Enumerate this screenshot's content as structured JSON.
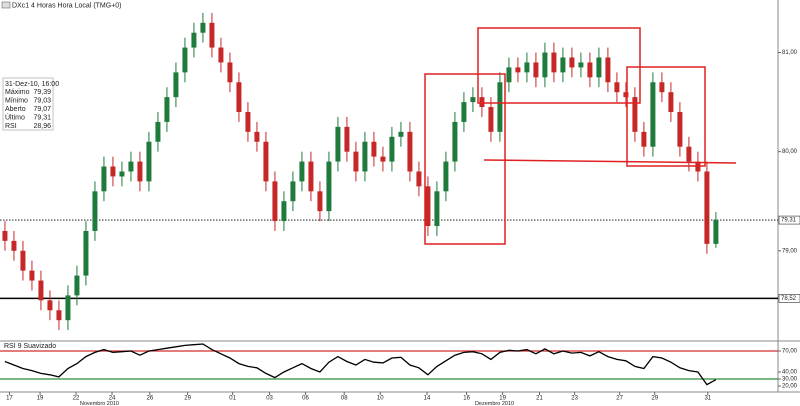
{
  "chart_data": [
    {
      "type": "candlestick",
      "title": "DXc1 4 Horas Hora Local (TMG+0)",
      "info": {
        "date": "31-Dez-10, 16:00",
        "rows": [
          [
            "Máximo",
            "79,39"
          ],
          [
            "Mínimo",
            "79,03"
          ],
          [
            "Aberto",
            "79,07"
          ],
          [
            "Último",
            "79,31"
          ],
          [
            "RSI",
            "28,96"
          ]
        ]
      },
      "up_color": "#1e7b3c",
      "down_color": "#c62828",
      "open": [
        79.2,
        79.1,
        79.0,
        78.8,
        78.7,
        78.5,
        78.4,
        78.3,
        78.55,
        78.75,
        79.2,
        79.6,
        79.85,
        79.75,
        79.8,
        79.9,
        79.7,
        80.1,
        80.3,
        80.55,
        80.8,
        81.05,
        81.2,
        81.3,
        81.05,
        80.9,
        80.7,
        80.4,
        80.2,
        80.1,
        79.7,
        79.3,
        79.5,
        79.7,
        79.9,
        79.6,
        79.4,
        79.9,
        80.25,
        80.0,
        79.8,
        80.1,
        79.95,
        79.9,
        80.15,
        80.2,
        79.8,
        79.65,
        79.25,
        79.6,
        79.9,
        80.3,
        80.5,
        80.55,
        80.45,
        80.2,
        80.7,
        80.85,
        80.8,
        80.9,
        80.75,
        81.0,
        80.8,
        80.95,
        80.85,
        80.9,
        80.75,
        80.95,
        80.7,
        80.6,
        80.55,
        80.2,
        80.05,
        80.7,
        80.6,
        80.4,
        80.05,
        79.9,
        79.8,
        79.07
      ],
      "high": [
        79.3,
        79.2,
        79.1,
        78.9,
        78.8,
        78.6,
        78.5,
        78.65,
        78.85,
        79.3,
        79.7,
        79.95,
        79.95,
        79.9,
        80.0,
        80.0,
        80.2,
        80.4,
        80.65,
        80.9,
        81.15,
        81.3,
        81.4,
        81.4,
        81.15,
        81.0,
        80.8,
        80.5,
        80.3,
        80.2,
        79.8,
        79.6,
        79.8,
        80.0,
        80.0,
        79.7,
        80.0,
        80.35,
        80.35,
        80.1,
        80.2,
        80.2,
        80.05,
        80.25,
        80.3,
        80.3,
        79.9,
        79.75,
        79.7,
        80.0,
        80.4,
        80.6,
        80.65,
        80.65,
        80.55,
        80.8,
        80.95,
        80.95,
        81.0,
        81.0,
        81.1,
        81.1,
        81.05,
        81.05,
        81.0,
        81.0,
        81.05,
        81.05,
        80.8,
        80.7,
        80.65,
        80.3,
        80.8,
        80.8,
        80.7,
        80.5,
        80.15,
        80.0,
        79.9,
        79.39
      ],
      "low": [
        79.0,
        78.9,
        78.7,
        78.6,
        78.4,
        78.3,
        78.2,
        78.2,
        78.45,
        78.65,
        79.1,
        79.5,
        79.65,
        79.65,
        79.7,
        79.6,
        79.6,
        80.0,
        80.2,
        80.45,
        80.7,
        80.95,
        81.1,
        80.95,
        80.8,
        80.6,
        80.3,
        80.1,
        80.0,
        79.6,
        79.2,
        79.2,
        79.4,
        79.6,
        79.5,
        79.3,
        79.3,
        79.8,
        79.9,
        79.7,
        79.7,
        79.85,
        79.8,
        79.8,
        80.05,
        79.7,
        79.55,
        79.15,
        79.15,
        79.5,
        79.8,
        80.2,
        80.4,
        80.35,
        80.1,
        80.1,
        80.6,
        80.7,
        80.7,
        80.65,
        80.65,
        80.7,
        80.7,
        80.75,
        80.75,
        80.65,
        80.65,
        80.6,
        80.5,
        80.45,
        80.1,
        79.95,
        79.95,
        80.5,
        80.3,
        79.95,
        79.8,
        79.7,
        78.97,
        79.03
      ],
      "close": [
        79.1,
        79.0,
        78.8,
        78.7,
        78.5,
        78.4,
        78.3,
        78.55,
        78.75,
        79.2,
        79.6,
        79.85,
        79.75,
        79.8,
        79.9,
        79.7,
        80.1,
        80.3,
        80.55,
        80.8,
        81.05,
        81.2,
        81.3,
        81.05,
        80.9,
        80.7,
        80.4,
        80.2,
        80.1,
        79.7,
        79.3,
        79.5,
        79.7,
        79.9,
        79.6,
        79.4,
        79.9,
        80.25,
        80.0,
        79.8,
        80.1,
        79.95,
        79.9,
        80.15,
        80.2,
        79.8,
        79.65,
        79.25,
        79.6,
        79.9,
        80.3,
        80.5,
        80.55,
        80.45,
        80.2,
        80.7,
        80.85,
        80.8,
        80.9,
        80.75,
        81.0,
        80.8,
        80.95,
        80.85,
        80.9,
        80.75,
        80.95,
        80.7,
        80.6,
        80.55,
        80.2,
        80.05,
        80.7,
        80.6,
        80.4,
        80.05,
        79.9,
        79.8,
        79.07,
        79.31
      ],
      "ylim": [
        78.1,
        81.53
      ],
      "yticks": [
        {
          "value": 81,
          "label": "81,00"
        },
        {
          "value": 80,
          "label": "80,00"
        },
        {
          "value": 79,
          "label": "79,00"
        }
      ],
      "hlines": [
        {
          "value": 79.31,
          "label": "79,31",
          "style": "dotted"
        },
        {
          "value": 78.52,
          "label": "78,52",
          "style": "solid"
        }
      ],
      "xlim": [
        -0.55,
        85.9
      ],
      "xticks": [
        {
          "value": 0.5,
          "label": "17"
        },
        {
          "value": 3.9,
          "label": "19"
        },
        {
          "value": 7.9,
          "label": "22"
        },
        {
          "value": 11.9,
          "label": "24"
        },
        {
          "value": 16.1,
          "label": "26"
        },
        {
          "value": 20.3,
          "label": "29"
        },
        {
          "value": 25.3,
          "label": "01"
        },
        {
          "value": 29.4,
          "label": "03"
        },
        {
          "value": 33.4,
          "label": "06"
        },
        {
          "value": 37.7,
          "label": "08"
        },
        {
          "value": 41.7,
          "label": "10"
        },
        {
          "value": 46.9,
          "label": "14"
        },
        {
          "value": 51.3,
          "label": "16"
        },
        {
          "value": 55.3,
          "label": "19"
        },
        {
          "value": 59.4,
          "label": "21"
        },
        {
          "value": 63.3,
          "label": "23"
        },
        {
          "value": 68.3,
          "label": "27"
        },
        {
          "value": 72.2,
          "label": "29"
        },
        {
          "value": 78.1,
          "label": "31"
        }
      ],
      "month_ticks": [
        {
          "value": 10.5,
          "label": "Novembro 2010"
        },
        {
          "value": 54.4,
          "label": "Dezembro 2010"
        }
      ]
    },
    {
      "type": "line",
      "title": "RSI 9 Suavizado",
      "color": "#000000",
      "values": [
        55,
        50,
        45,
        42,
        38,
        36,
        33,
        45,
        52,
        62,
        68,
        72,
        68,
        69,
        70,
        64,
        70,
        72,
        74,
        76,
        78,
        79,
        80,
        72,
        66,
        60,
        52,
        48,
        46,
        38,
        32,
        40,
        46,
        52,
        45,
        40,
        54,
        62,
        55,
        50,
        58,
        54,
        53,
        60,
        61,
        50,
        46,
        36,
        48,
        56,
        64,
        68,
        69,
        66,
        58,
        68,
        71,
        70,
        72,
        66,
        73,
        66,
        70,
        67,
        68,
        63,
        69,
        62,
        58,
        56,
        48,
        45,
        62,
        60,
        54,
        46,
        42,
        40,
        22,
        28.96
      ],
      "ylim": [
        11.4,
        82.9
      ],
      "yticks": [
        {
          "value": 70,
          "label": "70,00"
        },
        {
          "value": 40,
          "label": "40,00"
        },
        {
          "value": 30,
          "label": "30,00"
        },
        {
          "value": 20,
          "label": "20,00"
        }
      ],
      "levels": [
        {
          "value": 70,
          "color": "#d32f2f"
        },
        {
          "value": 30,
          "color": "#2e8b3a"
        }
      ]
    }
  ]
}
